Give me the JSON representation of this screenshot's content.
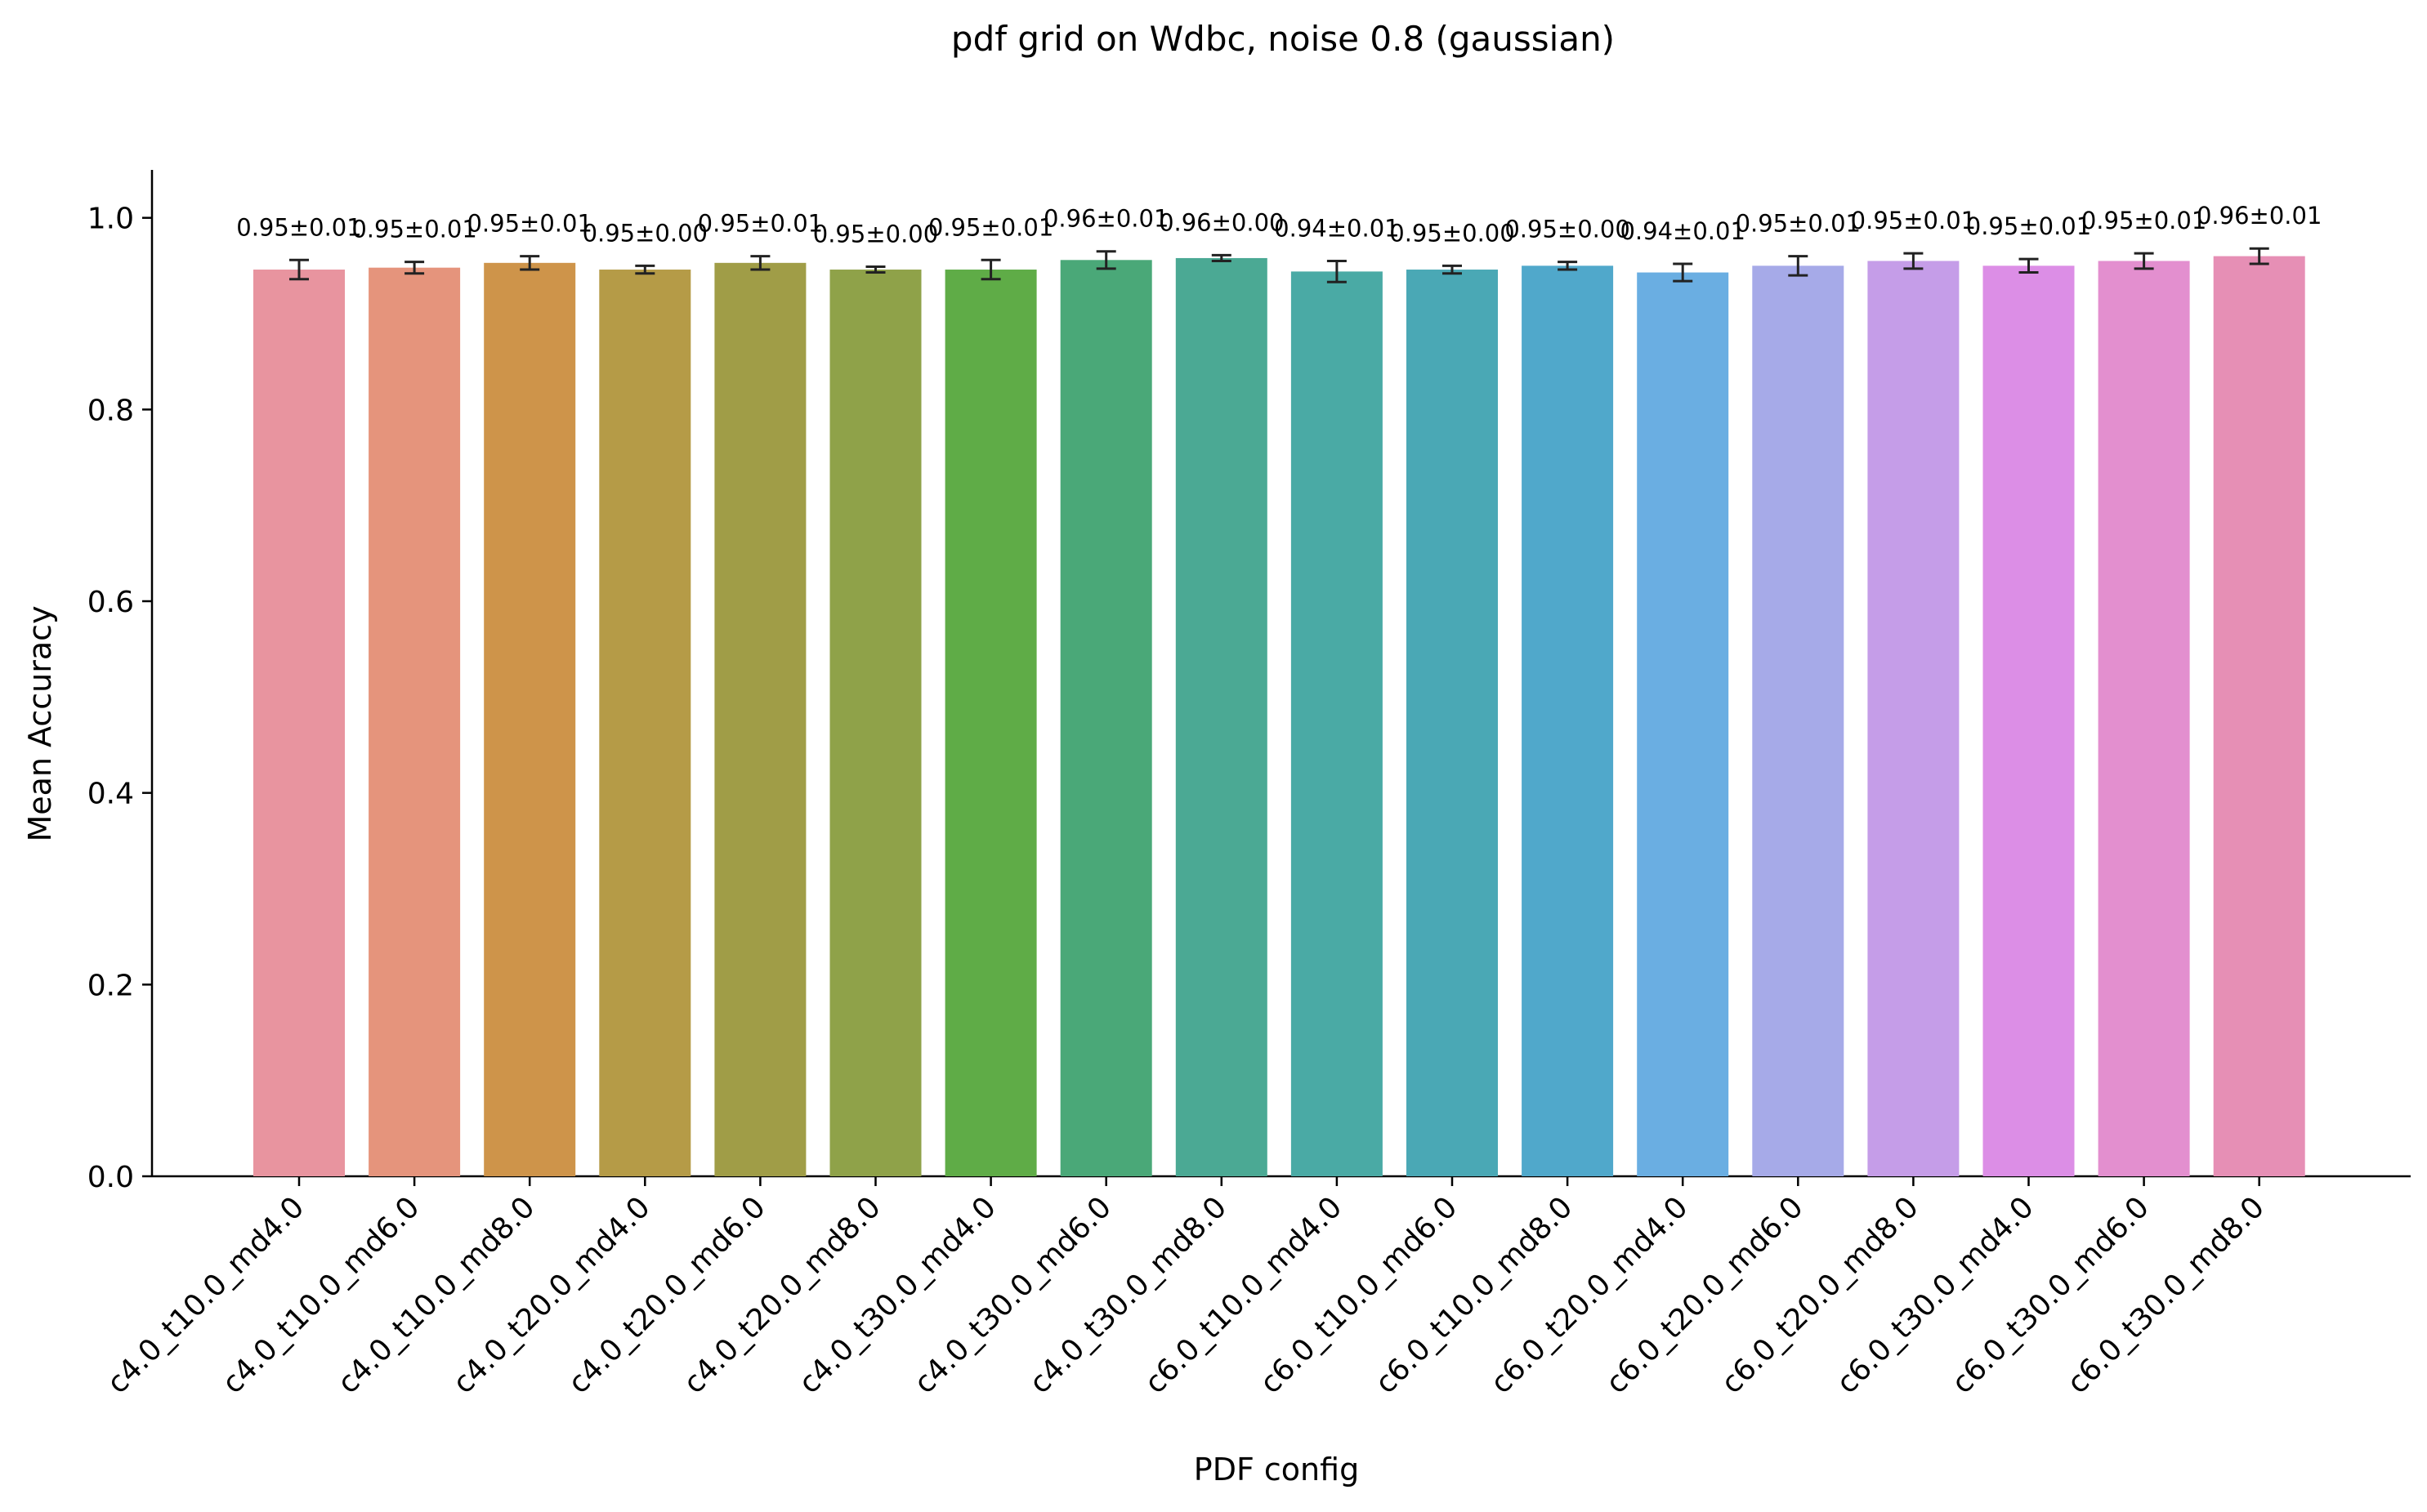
{
  "chart_data": {
    "type": "bar",
    "title": "pdf grid on Wdbc, noise 0.8 (gaussian)",
    "xlabel": "PDF config",
    "ylabel": "Mean Accuracy",
    "ylim": [
      0,
      1.05
    ],
    "yticks": [
      "0.0",
      "0.2",
      "0.4",
      "0.6",
      "0.8",
      "1.0"
    ],
    "grid": false,
    "categories": [
      "c4.0_t10.0_md4.0",
      "c4.0_t10.0_md6.0",
      "c4.0_t10.0_md8.0",
      "c4.0_t20.0_md4.0",
      "c4.0_t20.0_md6.0",
      "c4.0_t20.0_md8.0",
      "c4.0_t30.0_md4.0",
      "c4.0_t30.0_md6.0",
      "c4.0_t30.0_md8.0",
      "c6.0_t10.0_md4.0",
      "c6.0_t10.0_md6.0",
      "c6.0_t10.0_md8.0",
      "c6.0_t20.0_md4.0",
      "c6.0_t20.0_md6.0",
      "c6.0_t20.0_md8.0",
      "c6.0_t30.0_md4.0",
      "c6.0_t30.0_md6.0",
      "c6.0_t30.0_md8.0"
    ],
    "values": [
      0.946,
      0.948,
      0.953,
      0.946,
      0.953,
      0.946,
      0.946,
      0.956,
      0.958,
      0.944,
      0.946,
      0.95,
      0.943,
      0.95,
      0.955,
      0.95,
      0.955,
      0.96
    ],
    "errors": [
      0.01,
      0.006,
      0.007,
      0.004,
      0.007,
      0.003,
      0.01,
      0.009,
      0.003,
      0.011,
      0.004,
      0.004,
      0.009,
      0.01,
      0.008,
      0.007,
      0.008,
      0.008
    ],
    "labels": [
      "0.95±0.01",
      "0.95±0.01",
      "0.95±0.01",
      "0.95±0.00",
      "0.95±0.01",
      "0.95±0.00",
      "0.95±0.01",
      "0.96±0.01",
      "0.96±0.00",
      "0.94±0.01",
      "0.95±0.00",
      "0.95±0.00",
      "0.94±0.01",
      "0.95±0.01",
      "0.95±0.01",
      "0.95±0.01",
      "0.95±0.01",
      "0.96±0.01"
    ],
    "colors": [
      "#e8949f",
      "#e5947c",
      "#ce944a",
      "#b59b47",
      "#a09d47",
      "#8fa249",
      "#5fac47",
      "#4aa878",
      "#4ba994",
      "#4aaaa5",
      "#4aa8b5",
      "#50a8cb",
      "#6aaee2",
      "#a6aae8",
      "#c59de8",
      "#dc8ee6",
      "#e38fcf",
      "#e68fb5"
    ]
  }
}
